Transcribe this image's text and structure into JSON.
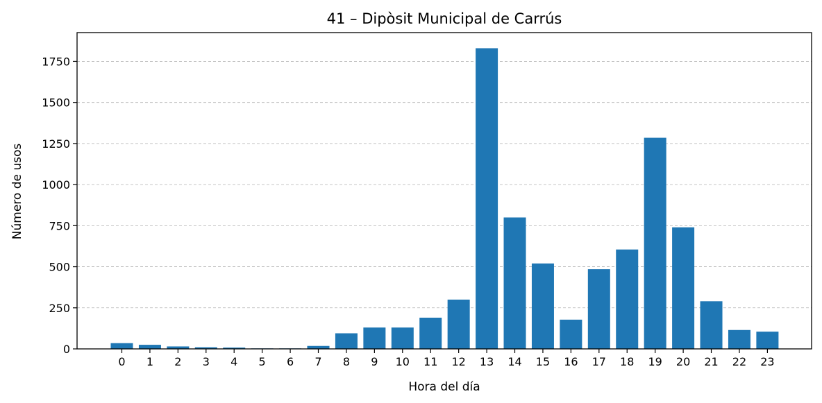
{
  "colors": {
    "bar": "#1f77b4",
    "grid": "#b0b0b0",
    "axis": "#000000",
    "background": "#ffffff"
  },
  "chart_data": {
    "type": "bar",
    "title": "41 – Dipòsit Municipal de Carrús",
    "xlabel": "Hora del día",
    "ylabel": "Número de usos",
    "categories": [
      "0",
      "1",
      "2",
      "3",
      "4",
      "5",
      "6",
      "7",
      "8",
      "9",
      "10",
      "11",
      "12",
      "13",
      "14",
      "15",
      "16",
      "17",
      "18",
      "19",
      "20",
      "21",
      "22",
      "23"
    ],
    "values": [
      35,
      25,
      15,
      10,
      8,
      3,
      3,
      18,
      95,
      130,
      130,
      190,
      300,
      1830,
      800,
      520,
      178,
      485,
      605,
      1285,
      740,
      290,
      115,
      105
    ],
    "ylim": [
      0,
      1925
    ],
    "yticks": [
      0,
      250,
      500,
      750,
      1000,
      1250,
      1500,
      1750
    ],
    "ytick_labels": [
      "0",
      "250",
      "500",
      "750",
      "1000",
      "1250",
      "1500",
      "1750"
    ],
    "grid": "y-dashed"
  }
}
